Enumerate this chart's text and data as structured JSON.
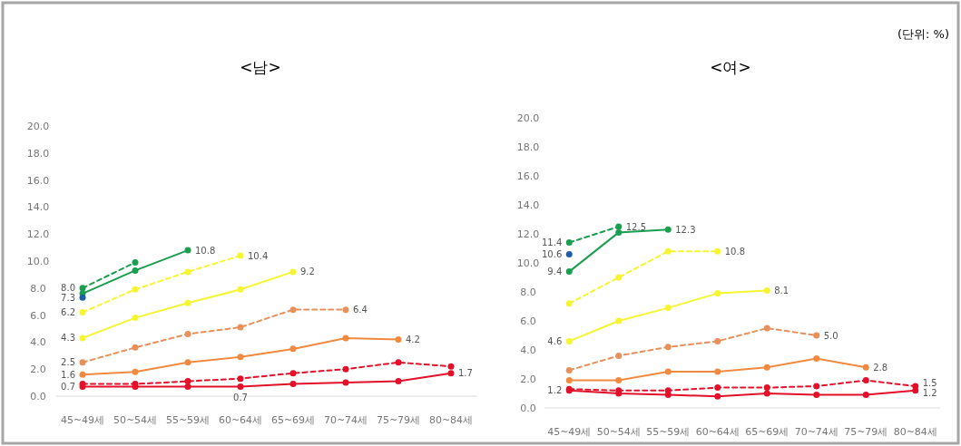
{
  "chart_data": [
    {
      "type": "line",
      "title": "<남>",
      "annotations": [
        "(단위: %)"
      ],
      "categories": [
        "45~49세",
        "50~54세",
        "55~59세",
        "60~64세",
        "65~69세",
        "70~74세",
        "75~79세",
        "80~84세"
      ],
      "ylim": [
        0,
        20
      ],
      "yticks": [
        {
          "value": 0,
          "label": "0.0"
        },
        {
          "value": 2,
          "label": "2.0"
        },
        {
          "value": 4,
          "label": "4.0"
        },
        {
          "value": 6,
          "label": "6.0"
        },
        {
          "value": 8,
          "label": "8.0"
        },
        {
          "value": 10,
          "label": "10.0"
        },
        {
          "value": 12,
          "label": "12.0"
        },
        {
          "value": 14,
          "label": "14.0"
        },
        {
          "value": 16,
          "label": "16.0"
        },
        {
          "value": 18,
          "label": "18.0"
        },
        {
          "value": 20,
          "label": "20.0"
        }
      ],
      "marker": "circle",
      "grid": false,
      "series": [
        {
          "color": "#1a9e50",
          "line_style": "dashed",
          "values": [
            8.0,
            9.9,
            null,
            null,
            null,
            null,
            null,
            null
          ],
          "value_labels": [
            "8.0",
            null,
            null,
            null,
            null,
            null,
            null,
            null
          ]
        },
        {
          "color": "#1a9e50",
          "line_style": "solid",
          "values": [
            7.6,
            9.3,
            10.8,
            null,
            null,
            null,
            null,
            null
          ],
          "value_labels": [
            null,
            null,
            "10.8",
            null,
            null,
            null,
            null,
            null
          ]
        },
        {
          "color": "#1f5fa8",
          "line_style": "solid",
          "values": [
            7.3,
            null,
            null,
            null,
            null,
            null,
            null,
            null
          ],
          "value_labels": [
            "7.3",
            null,
            null,
            null,
            null,
            null,
            null,
            null
          ]
        },
        {
          "color": "#f5f530",
          "line_style": "dashed",
          "values": [
            6.2,
            7.9,
            9.2,
            10.4,
            null,
            null,
            null,
            null
          ],
          "value_labels": [
            "6.2",
            null,
            null,
            "10.4",
            null,
            null,
            null,
            null
          ]
        },
        {
          "color": "#f5f530",
          "line_style": "solid",
          "values": [
            4.3,
            5.8,
            6.9,
            7.9,
            9.2,
            null,
            null,
            null
          ],
          "value_labels": [
            "4.3",
            null,
            null,
            null,
            "9.2",
            null,
            null,
            null
          ]
        },
        {
          "color": "#e8905a",
          "line_style": "dashed",
          "values": [
            2.5,
            3.6,
            4.6,
            5.1,
            6.4,
            6.4,
            null,
            null
          ],
          "value_labels": [
            "2.5",
            null,
            null,
            null,
            null,
            "6.4",
            null,
            null
          ]
        },
        {
          "color": "#f08a40",
          "line_style": "solid",
          "values": [
            1.6,
            1.8,
            2.5,
            2.9,
            3.5,
            4.3,
            4.2,
            null
          ],
          "value_labels": [
            "1.6",
            null,
            null,
            null,
            null,
            null,
            "4.2",
            null
          ]
        },
        {
          "color": "#e3102a",
          "line_style": "dashed",
          "values": [
            0.9,
            0.9,
            1.1,
            1.3,
            1.7,
            2.0,
            2.5,
            2.2
          ]
        },
        {
          "color": "#e3102a",
          "line_style": "solid",
          "values": [
            0.7,
            0.7,
            0.7,
            0.7,
            0.9,
            1.0,
            1.1,
            1.7
          ],
          "value_labels": [
            "0.7",
            null,
            null,
            "0.7",
            null,
            null,
            null,
            "1.7"
          ]
        }
      ]
    },
    {
      "type": "line",
      "title": "<여>",
      "categories": [
        "45~49세",
        "50~54세",
        "55~59세",
        "60~64세",
        "65~69세",
        "70~74세",
        "75~79세",
        "80~84세"
      ],
      "ylim": [
        0,
        20
      ],
      "yticks": [
        {
          "value": 0,
          "label": "0.0"
        },
        {
          "value": 2,
          "label": "2.0"
        },
        {
          "value": 4,
          "label": "4.0"
        },
        {
          "value": 6,
          "label": "6.0"
        },
        {
          "value": 8,
          "label": "8.0"
        },
        {
          "value": 10,
          "label": "10.0"
        },
        {
          "value": 12,
          "label": "12.0"
        },
        {
          "value": 14,
          "label": "14.0"
        },
        {
          "value": 16,
          "label": "16.0"
        },
        {
          "value": 18,
          "label": "18.0"
        },
        {
          "value": 20,
          "label": "20.0"
        }
      ],
      "marker": "circle",
      "grid": false,
      "series": [
        {
          "color": "#1a9e50",
          "line_style": "dashed",
          "values": [
            11.4,
            12.5,
            null,
            null,
            null,
            null,
            null,
            null
          ],
          "value_labels": [
            "11.4",
            "12.5",
            null,
            null,
            null,
            null,
            null,
            null
          ]
        },
        {
          "color": "#1a9e50",
          "line_style": "solid",
          "values": [
            9.4,
            12.1,
            12.3,
            null,
            null,
            null,
            null,
            null
          ],
          "value_labels": [
            "9.4",
            null,
            "12.3",
            null,
            null,
            null,
            null,
            null
          ]
        },
        {
          "color": "#1f5fa8",
          "line_style": "solid",
          "values": [
            10.6,
            null,
            null,
            null,
            null,
            null,
            null,
            null
          ],
          "value_labels": [
            "10.6",
            null,
            null,
            null,
            null,
            null,
            null,
            null
          ]
        },
        {
          "color": "#f5f530",
          "line_style": "dashed",
          "values": [
            7.2,
            9.0,
            10.8,
            10.8,
            null,
            null,
            null,
            null
          ],
          "value_labels": [
            null,
            null,
            null,
            "10.8",
            null,
            null,
            null,
            null
          ]
        },
        {
          "color": "#f5f530",
          "line_style": "solid",
          "values": [
            4.6,
            6.0,
            6.9,
            7.9,
            8.1,
            null,
            null,
            null
          ],
          "value_labels": [
            "4.6",
            null,
            null,
            null,
            "8.1",
            null,
            null,
            null
          ]
        },
        {
          "color": "#e8905a",
          "line_style": "dashed",
          "values": [
            2.6,
            3.6,
            4.2,
            4.6,
            5.5,
            5.0,
            null,
            null
          ],
          "value_labels": [
            null,
            null,
            null,
            null,
            null,
            "5.0",
            null,
            null
          ]
        },
        {
          "color": "#f08a40",
          "line_style": "solid",
          "values": [
            1.9,
            1.9,
            2.5,
            2.5,
            2.8,
            3.4,
            2.8,
            null
          ],
          "value_labels": [
            null,
            null,
            null,
            null,
            null,
            null,
            "2.8",
            null
          ]
        },
        {
          "color": "#e3102a",
          "line_style": "dashed",
          "values": [
            1.3,
            1.2,
            1.2,
            1.4,
            1.4,
            1.5,
            1.9,
            1.5
          ],
          "value_labels": [
            null,
            null,
            null,
            null,
            null,
            null,
            null,
            "1.5"
          ]
        },
        {
          "color": "#e3102a",
          "line_style": "solid",
          "values": [
            1.2,
            1.0,
            0.9,
            0.8,
            1.0,
            0.9,
            0.9,
            1.2
          ],
          "value_labels": [
            "1.2",
            null,
            null,
            null,
            null,
            null,
            null,
            "1.2"
          ]
        }
      ]
    }
  ]
}
